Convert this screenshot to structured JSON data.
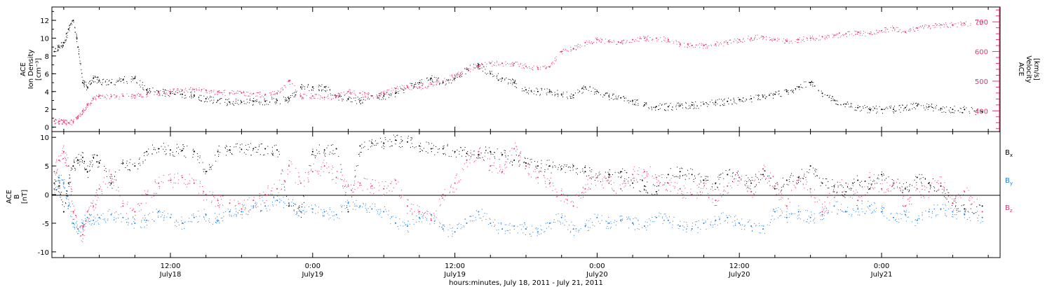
{
  "colors": {
    "black": "#000000",
    "pink": "#e8336b",
    "blue": "#1f7fe0"
  },
  "xaxis": {
    "ticks": [
      {
        "time": "12:00",
        "day": "July18"
      },
      {
        "time": "0:00",
        "day": "July19"
      },
      {
        "time": "12:00",
        "day": "July19"
      },
      {
        "time": "0:00",
        "day": "July20"
      },
      {
        "time": "12:00",
        "day": "July20"
      },
      {
        "time": "0:00",
        "day": "July21"
      }
    ],
    "title": "hours:minutes, July 18, 2011 - July 21, 2011"
  },
  "chart_data": [
    {
      "type": "scatter",
      "title": "",
      "x_units": "hours since July 18, 2011 0:00",
      "xlim": [
        2.0,
        82.0
      ],
      "ylabel_left": [
        "ACE",
        "Ion Density",
        "[cm⁻³]"
      ],
      "ylabel_right": [
        "ACE",
        "Velocity",
        "[km/s]"
      ],
      "ylim_left": [
        -0.5,
        13.5
      ],
      "ylim_right": [
        330,
        750
      ],
      "yticks_left": [
        0,
        2,
        4,
        6,
        8,
        10,
        12
      ],
      "yticks_right": [
        400,
        500,
        600,
        700
      ],
      "series": [
        {
          "name": "Ion Density",
          "axis": "left",
          "color": "#000000",
          "x": [
            2.2,
            2.6,
            3.0,
            3.4,
            3.8,
            4.2,
            4.6,
            5.0,
            5.5,
            6,
            7,
            8,
            9,
            10,
            11,
            12,
            13,
            14,
            15,
            16,
            17,
            18,
            19,
            20,
            21,
            22,
            23,
            24,
            25,
            26,
            27,
            28,
            29,
            30,
            31,
            32,
            33,
            34,
            35,
            36,
            37,
            38,
            39,
            40,
            41,
            42,
            43,
            44,
            45,
            46,
            47,
            48,
            49,
            50,
            51,
            52,
            53,
            54,
            55,
            56,
            57,
            58,
            59,
            60,
            61,
            62,
            63,
            64,
            65,
            66,
            67,
            68,
            69,
            70,
            71,
            72,
            73,
            74,
            75,
            76,
            77,
            78,
            79,
            80.5
          ],
          "y": [
            8.5,
            9.0,
            9.5,
            11.0,
            12.0,
            9.0,
            5.0,
            4.5,
            5.5,
            5.2,
            5.0,
            5.3,
            5.5,
            4.2,
            4.0,
            3.8,
            3.7,
            3.6,
            3.2,
            3.0,
            2.8,
            2.8,
            2.9,
            2.9,
            3.0,
            3.2,
            4.5,
            4.5,
            4.5,
            3.5,
            3.2,
            3.0,
            3.5,
            3.5,
            3.8,
            4.5,
            5.0,
            5.5,
            5.0,
            5.5,
            6.5,
            7.0,
            6.0,
            5.5,
            5.0,
            4.2,
            4.0,
            4.0,
            3.7,
            3.6,
            4.5,
            4.0,
            3.5,
            3.3,
            3.0,
            2.5,
            2.3,
            2.3,
            2.4,
            2.5,
            2.6,
            2.8,
            2.9,
            3.1,
            3.2,
            3.4,
            3.7,
            4.0,
            4.5,
            5.0,
            3.8,
            3.0,
            2.6,
            2.2,
            2.0,
            2.0,
            2.0,
            2.2,
            2.4,
            2.3,
            2.1,
            2.0,
            2.0,
            1.7
          ]
        },
        {
          "name": "Velocity",
          "axis": "right",
          "color": "#e8336b",
          "x": [
            2.2,
            2.6,
            3.0,
            3.4,
            3.8,
            4.2,
            4.6,
            5.0,
            5.5,
            6,
            7,
            8,
            9,
            10,
            11,
            12,
            13,
            14,
            15,
            16,
            17,
            18,
            19,
            20,
            21,
            22,
            23,
            24,
            25,
            26,
            27,
            28,
            29,
            30,
            31,
            32,
            33,
            34,
            35,
            36,
            37,
            38,
            39,
            40,
            41,
            42,
            43,
            44,
            45,
            46,
            47,
            48,
            49,
            50,
            51,
            52,
            53,
            54,
            55,
            56,
            57,
            58,
            59,
            60,
            61,
            62,
            63,
            64,
            65,
            66,
            67,
            68,
            69,
            70,
            71,
            72,
            73,
            74,
            75,
            76,
            77,
            78,
            79,
            80.5
          ],
          "y": [
            365,
            365,
            362,
            360,
            365,
            380,
            400,
            420,
            440,
            450,
            448,
            450,
            452,
            455,
            462,
            465,
            470,
            472,
            470,
            465,
            460,
            460,
            458,
            455,
            460,
            500,
            450,
            450,
            445,
            450,
            465,
            460,
            450,
            460,
            475,
            480,
            480,
            490,
            500,
            520,
            540,
            550,
            560,
            560,
            560,
            550,
            545,
            548,
            600,
            610,
            630,
            640,
            635,
            630,
            640,
            645,
            645,
            640,
            625,
            620,
            620,
            625,
            630,
            640,
            645,
            650,
            640,
            635,
            640,
            645,
            650,
            655,
            660,
            665,
            660,
            670,
            680,
            665,
            680,
            685,
            690,
            690,
            695,
            700
          ]
        }
      ]
    },
    {
      "type": "scatter",
      "title": "",
      "x_units": "hours since July 18, 2011 0:00",
      "xlim": [
        2.0,
        82.0
      ],
      "ylabel_left": [
        "ACE",
        "B",
        "[nT]"
      ],
      "ylim": [
        -11,
        11
      ],
      "yticks": [
        -10,
        -5,
        0,
        5,
        10
      ],
      "legend": [
        "Bx",
        "By",
        "Bz"
      ],
      "legend_position": "right",
      "zero_line": true,
      "series": [
        {
          "name": "Bx",
          "color": "#000000",
          "x": [
            2.2,
            2.6,
            3.0,
            3.4,
            3.8,
            4.2,
            4.6,
            5.0,
            5.5,
            6,
            7,
            8,
            9,
            10,
            11,
            12,
            13,
            14,
            15,
            16,
            17,
            18,
            19,
            20,
            21,
            22,
            23,
            24,
            25,
            26,
            27,
            28,
            29,
            30,
            31,
            32,
            33,
            34,
            35,
            36,
            37,
            38,
            39,
            40,
            41,
            42,
            43,
            44,
            45,
            46,
            47,
            48,
            49,
            50,
            51,
            52,
            53,
            54,
            55,
            56,
            57,
            58,
            59,
            60,
            61,
            62,
            63,
            64,
            65,
            66,
            67,
            68,
            69,
            70,
            71,
            72,
            73,
            74,
            75,
            76,
            77,
            78,
            79,
            80.5
          ],
          "y": [
            2.0,
            1.5,
            -3.0,
            2.0,
            5.0,
            6.0,
            6.5,
            4.0,
            6.5,
            5.5,
            2.0,
            5.5,
            5.0,
            7.5,
            8.0,
            7.8,
            7.7,
            7.5,
            4.0,
            7.5,
            7.8,
            7.9,
            8.0,
            8.0,
            7.8,
            -2.0,
            -3.0,
            7.5,
            7.8,
            8.0,
            -3.0,
            8.5,
            9.0,
            9.0,
            9.5,
            9.2,
            8.5,
            8.0,
            8.0,
            7.5,
            7.2,
            7.0,
            7.5,
            7.0,
            6.0,
            5.5,
            5.0,
            5.0,
            4.5,
            5.0,
            4.0,
            3.0,
            3.5,
            4.0,
            2.0,
            1.5,
            0.5,
            3.5,
            4.0,
            3.5,
            2.5,
            2.0,
            3.5,
            3.0,
            2.0,
            3.5,
            1.0,
            2.5,
            3.0,
            5.0,
            2.0,
            1.5,
            0.5,
            2.5,
            1.0,
            3.5,
            2.0,
            1.0,
            3.0,
            2.0,
            1.5,
            -1.5,
            -2.5,
            -2.0
          ]
        },
        {
          "name": "By",
          "color": "#1f7fe0",
          "x": [
            2.2,
            2.6,
            3.0,
            3.4,
            3.8,
            4.2,
            4.6,
            5.0,
            5.5,
            6,
            7,
            8,
            9,
            10,
            11,
            12,
            13,
            14,
            15,
            16,
            17,
            18,
            19,
            20,
            21,
            22,
            23,
            24,
            25,
            26,
            27,
            28,
            29,
            30,
            31,
            32,
            33,
            34,
            35,
            36,
            37,
            38,
            39,
            40,
            41,
            42,
            43,
            44,
            45,
            46,
            47,
            48,
            49,
            50,
            51,
            52,
            53,
            54,
            55,
            56,
            57,
            58,
            59,
            60,
            61,
            62,
            63,
            64,
            65,
            66,
            67,
            68,
            69,
            70,
            71,
            72,
            73,
            74,
            75,
            76,
            77,
            78,
            79,
            80.5
          ],
          "y": [
            1.0,
            3.0,
            2.0,
            -2.0,
            -5.0,
            -6.0,
            -5.0,
            -4.0,
            -4.5,
            -4.0,
            -3.5,
            -4.0,
            -5.0,
            -4.5,
            -3.0,
            -4.0,
            -5.0,
            -4.0,
            -3.5,
            -4.5,
            -3.0,
            -3.0,
            -2.0,
            -2.0,
            -1.0,
            -1.5,
            -3.0,
            -2.5,
            -3.0,
            -3.5,
            -1.5,
            -2.0,
            -2.5,
            -3.0,
            -5.0,
            -5.5,
            -4.0,
            -3.5,
            -6.0,
            -6.5,
            -5.0,
            -3.0,
            -5.0,
            -6.0,
            -5.5,
            -6.0,
            -6.5,
            -5.0,
            -4.0,
            -6.0,
            -5.5,
            -4.0,
            -5.0,
            -4.5,
            -5.0,
            -5.5,
            -4.0,
            -4.5,
            -5.5,
            -6.0,
            -5.0,
            -4.5,
            -4.0,
            -5.0,
            -5.5,
            -6.0,
            -3.0,
            -4.0,
            -3.0,
            -4.0,
            -3.5,
            -2.0,
            -3.0,
            -2.5,
            -2.0,
            -3.0,
            -4.0,
            -3.5,
            -4.5,
            -3.0,
            -2.5,
            -3.0,
            -3.5,
            -4.0
          ]
        },
        {
          "name": "Bz",
          "color": "#e8336b",
          "x": [
            2.2,
            2.6,
            3.0,
            3.4,
            3.8,
            4.2,
            4.6,
            5.0,
            5.5,
            6,
            7,
            8,
            9,
            10,
            11,
            12,
            13,
            14,
            15,
            16,
            17,
            18,
            19,
            20,
            21,
            22,
            23,
            24,
            25,
            26,
            27,
            28,
            29,
            30,
            31,
            32,
            33,
            34,
            35,
            36,
            37,
            38,
            39,
            40,
            41,
            42,
            43,
            44,
            45,
            46,
            47,
            48,
            49,
            50,
            51,
            52,
            53,
            54,
            55,
            56,
            57,
            58,
            59,
            60,
            61,
            62,
            63,
            64,
            65,
            66,
            67,
            68,
            69,
            70,
            71,
            72,
            73,
            74,
            75,
            76,
            77,
            78,
            79,
            80.5
          ],
          "y": [
            4.0,
            6.0,
            7.5,
            5.0,
            -3.0,
            -6.0,
            -7.0,
            -3.0,
            -2.0,
            1.0,
            3.5,
            -2.0,
            -3.0,
            0.0,
            2.0,
            2.5,
            3.0,
            2.0,
            0.0,
            -1.0,
            -1.5,
            -2.5,
            -1.0,
            0.0,
            1.0,
            5.0,
            2.0,
            4.0,
            5.0,
            3.0,
            1.5,
            2.0,
            1.5,
            1.0,
            2.5,
            -2.0,
            -3.0,
            -4.5,
            0.0,
            2.0,
            6.0,
            7.5,
            5.0,
            4.0,
            8.0,
            5.0,
            3.0,
            2.0,
            0.0,
            -2.0,
            1.0,
            3.0,
            2.0,
            1.0,
            3.5,
            4.0,
            3.0,
            2.0,
            1.0,
            0.0,
            2.0,
            -1.0,
            1.5,
            3.0,
            0.5,
            4.5,
            1.5,
            -2.0,
            2.5,
            1.0,
            -3.0,
            0.5,
            2.0,
            -1.0,
            3.0,
            1.0,
            2.0,
            -2.0,
            1.0,
            0.5,
            2.0,
            -1.5,
            0.5,
            -3.0
          ]
        }
      ]
    }
  ]
}
